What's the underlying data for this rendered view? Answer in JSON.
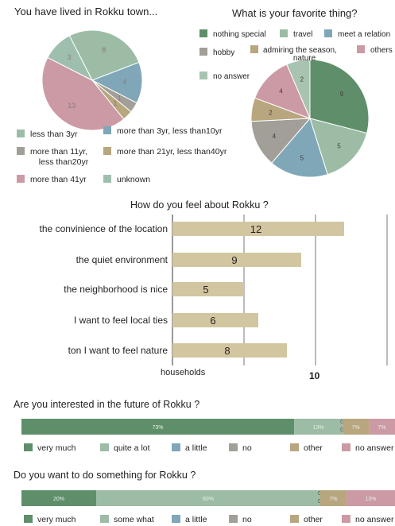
{
  "colors": {
    "green_dark": "#5f8f6a",
    "green_light": "#9cbca6",
    "blue": "#7fa7b8",
    "gray": "#a29e98",
    "khaki": "#b8a67e",
    "pink": "#cc9aa4",
    "mint": "#a8c4b0",
    "bar": "#d2c6a0",
    "bar_text": "#8a8a8a"
  },
  "chart_data": [
    {
      "type": "pie",
      "title": "You have lived in Rokku town...",
      "series": [
        {
          "name": "less than 3yr",
          "value": 8,
          "color": "#9cbca6"
        },
        {
          "name": "more than 3yr, less than10yr",
          "value": 4,
          "color": "#7fa7b8"
        },
        {
          "name": "more than 11yr, less than20yr",
          "value": 1,
          "color": "#a29e98"
        },
        {
          "name": "more than 21yr, less than40yr",
          "value": 1,
          "color": "#b8a67e"
        },
        {
          "name": "more than 41yr",
          "value": 13,
          "color": "#cc9aa4"
        },
        {
          "name": "unknown",
          "value": 3,
          "color": "#9fbfae"
        }
      ],
      "legend": [
        {
          "label": "less than 3yr",
          "color": "#9cbca6"
        },
        {
          "label": "more than 3yr, less than10yr",
          "color": "#7fa7b8"
        },
        {
          "label": "more than 11yr,",
          "label2": "less than20yr",
          "color": "#a29e98"
        },
        {
          "label": "more than 21yr, less than40yr",
          "color": "#b8a67e"
        },
        {
          "label": "more than 41yr",
          "color": "#cc9aa4"
        },
        {
          "label": "unknown",
          "color": "#9fbfae"
        }
      ]
    },
    {
      "type": "pie",
      "title": "What is your favorite thing?",
      "series": [
        {
          "name": "nothing special",
          "value": 9,
          "color": "#5f8f6a"
        },
        {
          "name": "travel",
          "value": 5,
          "color": "#9cbca6"
        },
        {
          "name": "meet a relation",
          "value": 5,
          "color": "#7fa7b8"
        },
        {
          "name": "hobby",
          "value": 4,
          "color": "#a29e98"
        },
        {
          "name": "admiring the season, nature",
          "value": 2,
          "color": "#b8a67e"
        },
        {
          "name": "others",
          "value": 4,
          "color": "#cc9aa4"
        },
        {
          "name": "no answer",
          "value": 2,
          "color": "#a8c4b0"
        }
      ],
      "legend": [
        {
          "label": "nothing special",
          "color": "#5f8f6a"
        },
        {
          "label": "travel",
          "color": "#9cbca6"
        },
        {
          "label": "meet a relation",
          "color": "#7fa7b8"
        },
        {
          "label": "hobby",
          "color": "#a29e98"
        },
        {
          "label": "admiring the season,",
          "label2": "nature",
          "color": "#b8a67e"
        },
        {
          "label": "others",
          "color": "#cc9aa4"
        },
        {
          "label": "no answer",
          "color": "#a8c4b0"
        }
      ]
    },
    {
      "type": "bar",
      "orientation": "horizontal",
      "title": "How do you feel about Rokku ?",
      "categories": [
        "the convinience of the location",
        "the quiet environment",
        "the neighborhood is nice",
        "I want to feel local ties",
        "ton I want to feel nature"
      ],
      "values": [
        12,
        9,
        5,
        6,
        8
      ],
      "xlabel": "households",
      "xlim": [
        0,
        15
      ],
      "ticks": [
        5,
        10,
        15
      ],
      "tick_labels": [
        {
          "value": 10,
          "label": "10"
        }
      ],
      "grid": true
    },
    {
      "type": "bar",
      "stacked": true,
      "orientation": "horizontal",
      "title": "Are you interested in the future of Rokku ?",
      "series": [
        {
          "name": "very much",
          "value": 73,
          "label": "73%",
          "color": "#5f8f6a"
        },
        {
          "name": "quite a lot",
          "value": 13,
          "label": "13%",
          "color": "#9cbca6"
        },
        {
          "name": "a little",
          "value": 0,
          "label": "0%",
          "color": "#7fa7b8"
        },
        {
          "name": "no",
          "value": 0,
          "label": "0%",
          "color": "#a29e98"
        },
        {
          "name": "other",
          "value": 7,
          "label": "7%",
          "color": "#b8a67e"
        },
        {
          "name": "no answer",
          "value": 7,
          "label": "7%",
          "color": "#cc9aa4"
        }
      ]
    },
    {
      "type": "bar",
      "stacked": true,
      "orientation": "horizontal",
      "title": "Do you want to do something for Rokku ?",
      "series": [
        {
          "name": "very much",
          "value": 20,
          "label": "20%",
          "color": "#5f8f6a"
        },
        {
          "name": "some what",
          "value": 60,
          "label": "60%",
          "color": "#9cbca6"
        },
        {
          "name": "a little",
          "value": 0,
          "label": "0%",
          "color": "#7fa7b8"
        },
        {
          "name": "no",
          "value": 0,
          "label": "0%",
          "color": "#a29e98"
        },
        {
          "name": "other",
          "value": 7,
          "label": "7%",
          "color": "#b8a67e"
        },
        {
          "name": "no answer",
          "value": 13,
          "label": "13%",
          "color": "#cc9aa4"
        }
      ]
    }
  ]
}
